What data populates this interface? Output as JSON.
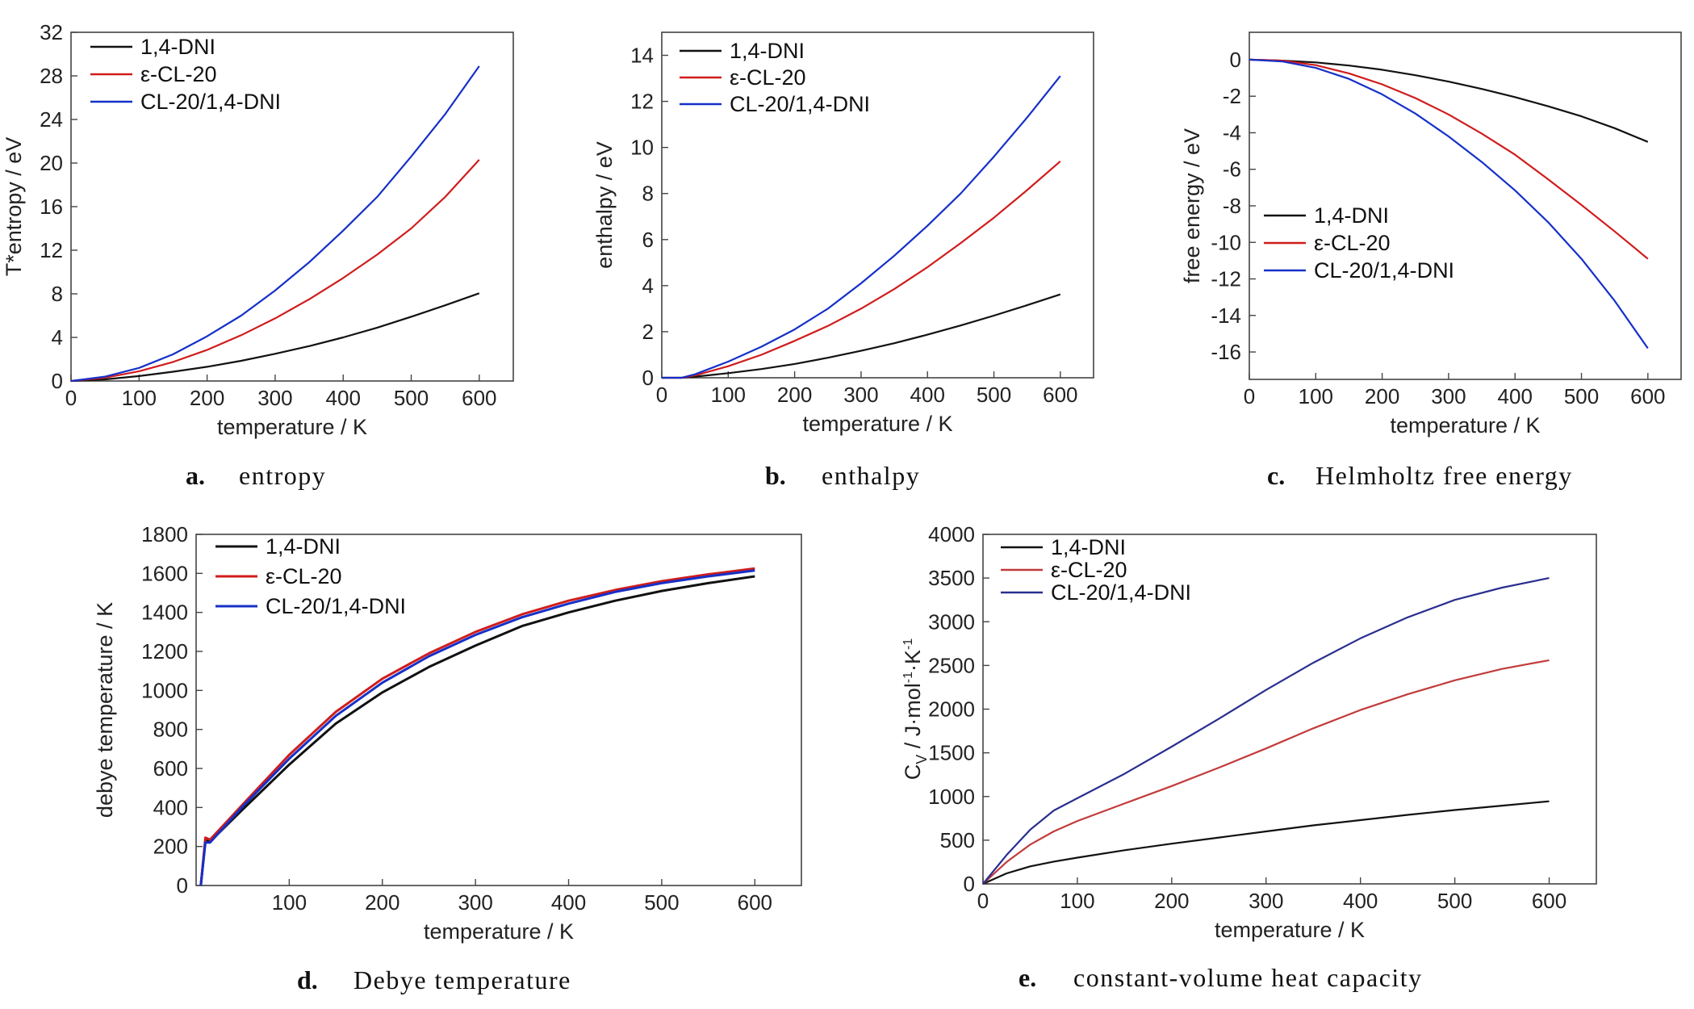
{
  "chart_data": [
    {
      "panel": "a",
      "type": "line",
      "caption_letter": "a.",
      "caption": "entropy",
      "xlabel": "temperature / K",
      "ylabel": "T*entropy / eV",
      "xlim": [
        0,
        650
      ],
      "ylim": [
        0,
        32
      ],
      "xticks": [
        0,
        100,
        200,
        300,
        400,
        500,
        600
      ],
      "yticks": [
        0,
        4,
        8,
        12,
        16,
        20,
        24,
        28,
        32
      ],
      "legend_position": "top-left",
      "series": [
        {
          "name": "1,4-DNI",
          "color": "#111111",
          "x": [
            0,
            50,
            100,
            150,
            200,
            250,
            300,
            350,
            400,
            450,
            500,
            550,
            600
          ],
          "y": [
            0,
            0.15,
            0.45,
            0.85,
            1.3,
            1.85,
            2.5,
            3.2,
            4.0,
            4.9,
            5.9,
            6.95,
            8.05
          ]
        },
        {
          "name": "ε-CL-20",
          "color": "#d01c1c",
          "x": [
            0,
            50,
            100,
            150,
            200,
            250,
            300,
            350,
            400,
            450,
            500,
            550,
            600
          ],
          "y": [
            0,
            0.3,
            0.9,
            1.75,
            2.85,
            4.2,
            5.75,
            7.5,
            9.45,
            11.6,
            14.0,
            16.9,
            20.3
          ]
        },
        {
          "name": "CL-20/1,4-DNI",
          "color": "#1530c8",
          "x": [
            0,
            50,
            100,
            150,
            200,
            250,
            300,
            350,
            400,
            450,
            500,
            550,
            600
          ],
          "y": [
            0,
            0.4,
            1.2,
            2.45,
            4.1,
            6.0,
            8.3,
            10.9,
            13.8,
            16.9,
            20.6,
            24.5,
            28.9
          ]
        }
      ]
    },
    {
      "panel": "b",
      "type": "line",
      "caption_letter": "b.",
      "caption": "enthalpy",
      "xlabel": "temperature / K",
      "ylabel": "enthalpy / eV",
      "xlim": [
        0,
        650
      ],
      "ylim": [
        0,
        15
      ],
      "xticks": [
        0,
        100,
        200,
        300,
        400,
        500,
        600
      ],
      "yticks": [
        0,
        2,
        4,
        6,
        8,
        10,
        12,
        14
      ],
      "legend_position": "top-left",
      "series": [
        {
          "name": "1,4-DNI",
          "color": "#111111",
          "x": [
            0,
            30,
            50,
            100,
            150,
            200,
            250,
            300,
            350,
            400,
            450,
            500,
            550,
            600
          ],
          "y": [
            0,
            0,
            0.05,
            0.2,
            0.38,
            0.6,
            0.87,
            1.17,
            1.5,
            1.87,
            2.27,
            2.7,
            3.15,
            3.62
          ]
        },
        {
          "name": "ε-CL-20",
          "color": "#d01c1c",
          "x": [
            0,
            30,
            50,
            100,
            150,
            200,
            250,
            300,
            350,
            400,
            450,
            500,
            550,
            600
          ],
          "y": [
            0,
            0,
            0.1,
            0.5,
            1.0,
            1.6,
            2.25,
            3.0,
            3.85,
            4.8,
            5.85,
            6.95,
            8.15,
            9.4
          ]
        },
        {
          "name": "CL-20/1,4-DNI",
          "color": "#1530c8",
          "x": [
            0,
            30,
            50,
            100,
            150,
            200,
            250,
            300,
            350,
            400,
            450,
            500,
            550,
            600
          ],
          "y": [
            0,
            0,
            0.15,
            0.7,
            1.35,
            2.1,
            3.0,
            4.1,
            5.3,
            6.6,
            8.0,
            9.6,
            11.3,
            13.1
          ]
        }
      ]
    },
    {
      "panel": "c",
      "type": "line",
      "caption_letter": "c.",
      "caption": "Helmholtz free energy",
      "xlabel": "temperature / K",
      "ylabel": "free energy / eV",
      "xlim": [
        0,
        650
      ],
      "ylim": [
        -17.5,
        1.5
      ],
      "xticks": [
        0,
        100,
        200,
        300,
        400,
        500,
        600
      ],
      "yticks": [
        0,
        -2,
        -4,
        -6,
        -8,
        -10,
        -12,
        -14,
        -16
      ],
      "legend_position": "center-left",
      "series": [
        {
          "name": "1,4-DNI",
          "color": "#111111",
          "x": [
            0,
            50,
            100,
            150,
            200,
            250,
            300,
            350,
            400,
            450,
            500,
            550,
            600
          ],
          "y": [
            0,
            -0.05,
            -0.15,
            -0.32,
            -0.55,
            -0.85,
            -1.2,
            -1.6,
            -2.05,
            -2.55,
            -3.1,
            -3.75,
            -4.5
          ]
        },
        {
          "name": "ε-CL-20",
          "color": "#d01c1c",
          "x": [
            0,
            50,
            100,
            150,
            200,
            250,
            300,
            350,
            400,
            450,
            500,
            550,
            600
          ],
          "y": [
            0,
            -0.05,
            -0.3,
            -0.75,
            -1.35,
            -2.1,
            -3.0,
            -4.05,
            -5.2,
            -6.55,
            -7.95,
            -9.4,
            -10.9
          ]
        },
        {
          "name": "CL-20/1,4-DNI",
          "color": "#1530c8",
          "x": [
            0,
            50,
            100,
            150,
            200,
            250,
            300,
            350,
            400,
            450,
            500,
            550,
            600
          ],
          "y": [
            0,
            -0.1,
            -0.45,
            -1.05,
            -1.9,
            -2.95,
            -4.2,
            -5.6,
            -7.15,
            -8.9,
            -10.9,
            -13.2,
            -15.8
          ]
        }
      ]
    },
    {
      "panel": "d",
      "type": "line",
      "caption_letter": "d.",
      "caption": "Debye temperature",
      "xlabel": "temperature / K",
      "ylabel": "debye temperature / K",
      "xlim": [
        0,
        650
      ],
      "ylim": [
        0,
        1800
      ],
      "xticks": [
        100,
        200,
        300,
        400,
        500,
        600
      ],
      "yticks": [
        0,
        200,
        400,
        600,
        800,
        1000,
        1200,
        1400,
        1600,
        1800
      ],
      "legend_position": "top-left",
      "series": [
        {
          "name": "1,4-DNI",
          "color": "#111111",
          "x": [
            5,
            10,
            15,
            50,
            100,
            150,
            200,
            250,
            300,
            350,
            400,
            450,
            500,
            550,
            600
          ],
          "y": [
            0,
            230,
            225,
            390,
            620,
            830,
            990,
            1120,
            1230,
            1330,
            1400,
            1460,
            1510,
            1550,
            1585
          ]
        },
        {
          "name": "ε-CL-20",
          "color": "#d01c1c",
          "x": [
            5,
            10,
            15,
            50,
            100,
            150,
            200,
            250,
            300,
            350,
            400,
            450,
            500,
            550,
            600
          ],
          "y": [
            0,
            245,
            235,
            415,
            670,
            890,
            1060,
            1190,
            1300,
            1390,
            1460,
            1515,
            1560,
            1595,
            1625
          ]
        },
        {
          "name": "CL-20/1,4-DNI",
          "color": "#1530c8",
          "x": [
            5,
            10,
            15,
            50,
            100,
            150,
            200,
            250,
            300,
            350,
            400,
            450,
            500,
            550,
            600
          ],
          "y": [
            0,
            220,
            220,
            405,
            650,
            870,
            1040,
            1175,
            1285,
            1375,
            1445,
            1505,
            1550,
            1585,
            1615
          ]
        }
      ]
    },
    {
      "panel": "e",
      "type": "line",
      "caption_letter": "e.",
      "caption": "constant-volume heat capacity",
      "xlabel": "temperature / K",
      "ylabel_parts": [
        "C",
        "V",
        " / J·mol",
        "-1",
        "·K",
        "-1"
      ],
      "xlim": [
        0,
        650
      ],
      "ylim": [
        0,
        4000
      ],
      "xticks": [
        0,
        100,
        200,
        300,
        400,
        500,
        600
      ],
      "yticks": [
        0,
        500,
        1000,
        1500,
        2000,
        2500,
        3000,
        3500,
        4000
      ],
      "legend_position": "top-left",
      "series": [
        {
          "name": "1,4-DNI",
          "color": "#111111",
          "x": [
            0,
            25,
            50,
            75,
            100,
            150,
            200,
            250,
            300,
            350,
            400,
            450,
            500,
            550,
            600
          ],
          "y": [
            0,
            120,
            200,
            255,
            300,
            385,
            460,
            530,
            600,
            670,
            730,
            790,
            845,
            895,
            945
          ]
        },
        {
          "name": "ε-CL-20",
          "color": "#c23b3b",
          "x": [
            0,
            25,
            50,
            75,
            100,
            150,
            200,
            250,
            300,
            350,
            400,
            450,
            500,
            550,
            600
          ],
          "y": [
            0,
            250,
            450,
            600,
            720,
            920,
            1120,
            1330,
            1550,
            1780,
            1990,
            2170,
            2330,
            2460,
            2560
          ]
        },
        {
          "name": "CL-20/1,4-DNI",
          "color": "#2a2f8f",
          "x": [
            0,
            25,
            50,
            75,
            100,
            150,
            200,
            250,
            300,
            350,
            400,
            450,
            500,
            550,
            600
          ],
          "y": [
            0,
            330,
            620,
            840,
            980,
            1260,
            1570,
            1890,
            2220,
            2530,
            2810,
            3050,
            3250,
            3390,
            3500
          ]
        }
      ]
    }
  ]
}
